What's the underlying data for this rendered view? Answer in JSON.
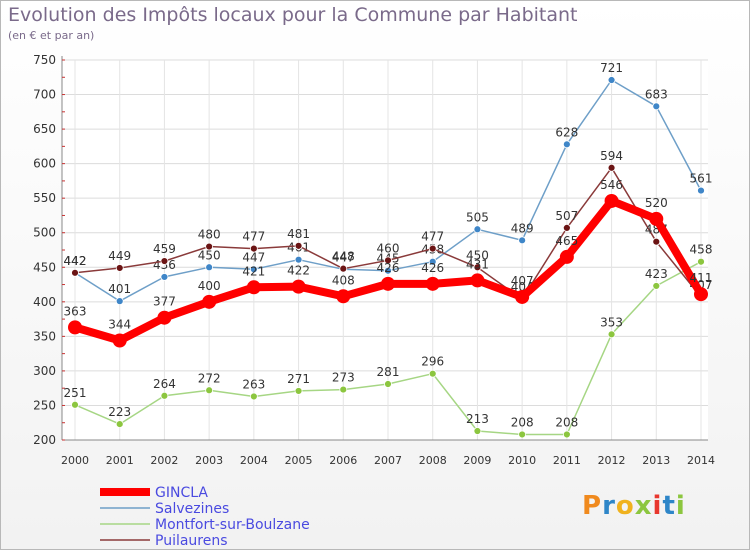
{
  "title": "Evolution des Impôts locaux pour la Commune par Habitant",
  "subtitle": "(en € et par an)",
  "logo": {
    "text": "Proxiti",
    "letters": [
      {
        "ch": "P",
        "color": "#f08a1e"
      },
      {
        "ch": "r",
        "color": "#2e86c8"
      },
      {
        "ch": "o",
        "color": "#f0b21e"
      },
      {
        "ch": "x",
        "color": "#8cc63f"
      },
      {
        "ch": "i",
        "color": "#e8372e"
      },
      {
        "ch": "t",
        "color": "#2e86c8"
      },
      {
        "ch": "i",
        "color": "#8cc63f"
      }
    ]
  },
  "chart_data": {
    "type": "line",
    "x": [
      "2000",
      "2001",
      "2002",
      "2003",
      "2004",
      "2005",
      "2006",
      "2007",
      "2008",
      "2009",
      "2010",
      "2011",
      "2012",
      "2013",
      "2014"
    ],
    "ylim": [
      200,
      750
    ],
    "yticks": [
      "200",
      "250",
      "300",
      "350",
      "400",
      "450",
      "500",
      "550",
      "600",
      "650",
      "700",
      "750"
    ],
    "grid": true,
    "legend_position": "bottom-left",
    "series": [
      {
        "name": "GINCLA",
        "color": "#ff0000",
        "emphasis": true,
        "values": [
          363,
          344,
          377,
          400,
          421,
          422,
          408,
          426,
          426,
          431,
          407,
          465,
          546,
          520,
          411
        ],
        "labels": [
          "363",
          "344",
          "377",
          "400",
          "421",
          "422",
          "408",
          "426",
          "426",
          "431",
          "407",
          "465",
          "546",
          "520",
          "411"
        ]
      },
      {
        "name": "Salvezines",
        "color": "#6e9fc8",
        "marker": "#3f86c8",
        "values": [
          442,
          401,
          436,
          450,
          447,
          461,
          447,
          445,
          458,
          505,
          489,
          628,
          721,
          683,
          561
        ],
        "labels": [
          "442",
          "401",
          "436",
          "450",
          "447",
          "461",
          "447",
          "445",
          "458",
          "505",
          "489",
          "628",
          "721",
          "683",
          "561"
        ]
      },
      {
        "name": "Montfort-sur-Boulzane",
        "color": "#a6d684",
        "marker": "#8cc63f",
        "values": [
          251,
          223,
          264,
          272,
          263,
          271,
          273,
          281,
          296,
          213,
          208,
          208,
          353,
          423,
          458
        ],
        "labels": [
          "251",
          "223",
          "264",
          "272",
          "263",
          "271",
          "273",
          "281",
          "296",
          "213",
          "208",
          "208",
          "353",
          "423",
          "458"
        ]
      },
      {
        "name": "Puilaurens",
        "color": "#8a3a3a",
        "marker": "#6b1414",
        "values": [
          442,
          449,
          459,
          480,
          477,
          481,
          448,
          460,
          477,
          450,
          404,
          507,
          594,
          487,
          407
        ],
        "labels": [
          "442",
          "449",
          "459",
          "480",
          "477",
          "481",
          "448",
          "460",
          "477",
          "450",
          "404",
          "507",
          "594",
          "487",
          "407"
        ]
      }
    ]
  }
}
